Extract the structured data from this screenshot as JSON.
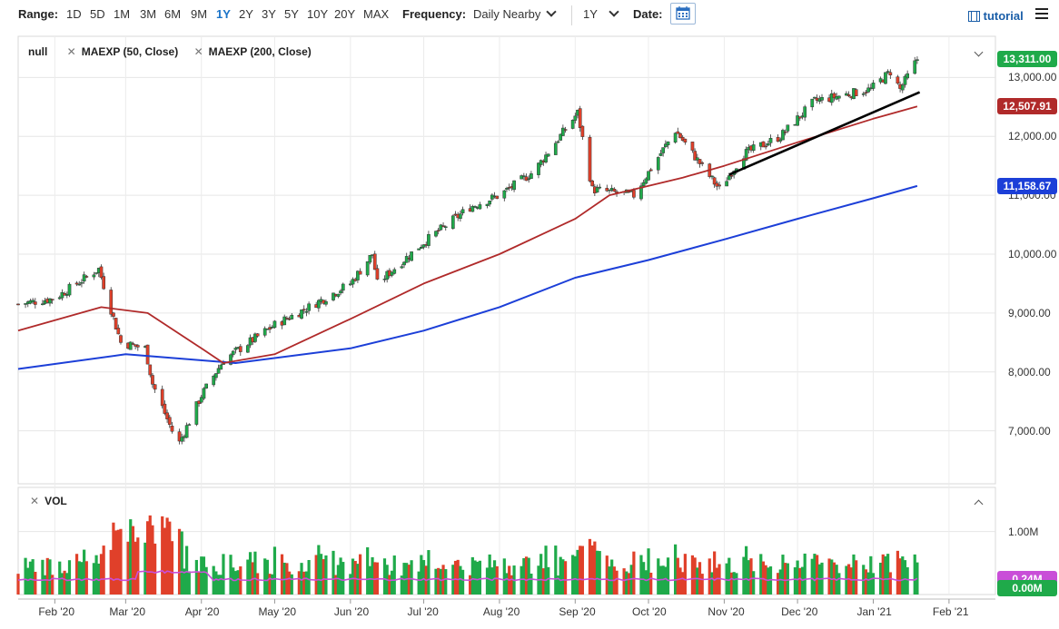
{
  "toolbar": {
    "range_label": "Range:",
    "ranges": [
      "1D",
      "5D",
      "1M",
      "3M",
      "6M",
      "9M",
      "1Y",
      "2Y",
      "3Y",
      "5Y",
      "10Y",
      "20Y",
      "MAX"
    ],
    "active_range": "1Y",
    "frequency_label": "Frequency:",
    "frequency_value": "Daily Nearby",
    "period_value": "1Y",
    "date_label": "Date:",
    "tutorial_label": "tutorial"
  },
  "legend": {
    "symbol": "null",
    "ma50": "MAEXP (50, Close)",
    "ma200": "MAEXP (200, Close)",
    "vol": "VOL"
  },
  "badges": {
    "last_price": "13,311.00",
    "ma50_value": "12,507.91",
    "ma200_value": "11,158.67",
    "vol_value": "0.24M",
    "vol_zero": "0.00M"
  },
  "colors": {
    "up": "#1faa4a",
    "down": "#e0402a",
    "ma50": "#b02a2a",
    "ma200": "#1c3fd8",
    "vol_ma": "#c94ed8",
    "trendline": "#000000",
    "accent": "#1a73c8"
  },
  "chart_data": {
    "type": "candlestick",
    "price_axis": {
      "ticks": [
        "13,000.00",
        "12,000.00",
        "11,000.00",
        "10,000.00",
        "9,000.00",
        "8,000.00",
        "7,000.00"
      ],
      "tick_values": [
        13000,
        12000,
        11000,
        10000,
        9000,
        8000,
        7000
      ],
      "range": [
        6100,
        13700
      ]
    },
    "volume_axis": {
      "ticks": [
        "1.00M"
      ],
      "tick_values": [
        1000000
      ],
      "range": [
        0,
        1700000
      ]
    },
    "x_axis": {
      "labels": [
        "Feb '20",
        "Mar '20",
        "Apr '20",
        "May '20",
        "Jun '20",
        "Jul '20",
        "Aug '20",
        "Sep '20",
        "Oct '20",
        "Nov '20",
        "Dec '20",
        "Jan '21",
        "Feb '21"
      ],
      "label_dates": [
        "2020-02-01",
        "2020-03-01",
        "2020-04-01",
        "2020-05-01",
        "2020-06-01",
        "2020-07-01",
        "2020-08-01",
        "2020-09-01",
        "2020-10-01",
        "2020-11-01",
        "2020-12-01",
        "2021-01-01",
        "2021-02-01"
      ],
      "range": [
        "2020-01-17",
        "2021-02-20"
      ]
    },
    "close_path": [
      [
        "2020-01-17",
        9150
      ],
      [
        "2020-02-01",
        9250
      ],
      [
        "2020-02-19",
        9750
      ],
      [
        "2020-02-28",
        8500
      ],
      [
        "2020-03-09",
        8400
      ],
      [
        "2020-03-12",
        7800
      ],
      [
        "2020-03-20",
        7000
      ],
      [
        "2020-03-23",
        6800
      ],
      [
        "2020-04-01",
        7600
      ],
      [
        "2020-04-10",
        8200
      ],
      [
        "2020-05-01",
        8800
      ],
      [
        "2020-05-15",
        9100
      ],
      [
        "2020-06-01",
        9500
      ],
      [
        "2020-06-10",
        10000
      ],
      [
        "2020-06-12",
        9500
      ],
      [
        "2020-07-01",
        10200
      ],
      [
        "2020-07-20",
        10800
      ],
      [
        "2020-08-01",
        11000
      ],
      [
        "2020-08-15",
        11400
      ],
      [
        "2020-09-02",
        12400
      ],
      [
        "2020-09-08",
        11100
      ],
      [
        "2020-09-25",
        11000
      ],
      [
        "2020-10-12",
        12100
      ],
      [
        "2020-10-30",
        11100
      ],
      [
        "2020-11-09",
        11700
      ],
      [
        "2020-11-24",
        12000
      ],
      [
        "2020-12-08",
        12600
      ],
      [
        "2020-12-31",
        12800
      ],
      [
        "2021-01-08",
        13100
      ],
      [
        "2021-01-12",
        12800
      ],
      [
        "2021-01-19",
        13311
      ]
    ],
    "ma50": [
      [
        "2020-01-17",
        8700
      ],
      [
        "2020-02-20",
        9100
      ],
      [
        "2020-03-10",
        9000
      ],
      [
        "2020-04-01",
        8400
      ],
      [
        "2020-04-10",
        8150
      ],
      [
        "2020-05-01",
        8300
      ],
      [
        "2020-06-01",
        8900
      ],
      [
        "2020-07-01",
        9500
      ],
      [
        "2020-08-01",
        10000
      ],
      [
        "2020-09-01",
        10600
      ],
      [
        "2020-09-15",
        11000
      ],
      [
        "2020-10-15",
        11300
      ],
      [
        "2020-11-01",
        11500
      ],
      [
        "2020-12-01",
        11900
      ],
      [
        "2021-01-01",
        12300
      ],
      [
        "2021-01-19",
        12507.91
      ]
    ],
    "ma200": [
      [
        "2020-01-17",
        8050
      ],
      [
        "2020-03-01",
        8300
      ],
      [
        "2020-04-15",
        8150
      ],
      [
        "2020-06-01",
        8400
      ],
      [
        "2020-07-01",
        8700
      ],
      [
        "2020-08-01",
        9100
      ],
      [
        "2020-09-01",
        9600
      ],
      [
        "2020-10-01",
        9900
      ],
      [
        "2020-11-01",
        10250
      ],
      [
        "2020-12-01",
        10600
      ],
      [
        "2021-01-01",
        10950
      ],
      [
        "2021-01-19",
        11158.67
      ]
    ],
    "trendline": [
      [
        "2020-11-03",
        11350
      ],
      [
        "2021-01-20",
        12750
      ]
    ],
    "last_price": 13311.0,
    "ma50_last": 12507.91,
    "ma200_last": 11158.67,
    "volume_ma_last": 240000,
    "grid": true
  }
}
